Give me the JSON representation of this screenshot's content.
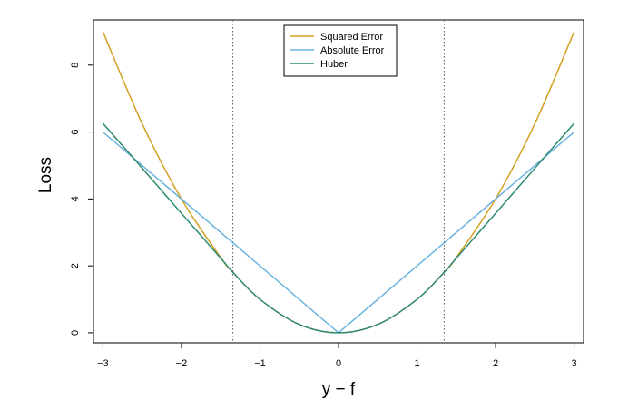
{
  "chart_data": {
    "type": "line",
    "title": "",
    "xlabel": "y − f",
    "ylabel": "Loss",
    "xlim": [
      -3.12,
      3.12
    ],
    "ylim": [
      -0.3,
      9.35
    ],
    "x_ticks": [
      -3,
      -2,
      -1,
      0,
      1,
      2,
      3
    ],
    "x_tick_labels": [
      "−3",
      "−2",
      "−1",
      "0",
      "1",
      "2",
      "3"
    ],
    "y_ticks": [
      0,
      2,
      4,
      6,
      8
    ],
    "y_tick_labels": [
      "0",
      "2",
      "4",
      "6",
      "8"
    ],
    "x": [
      -3,
      -2.5,
      -2,
      -1.5,
      -1.345,
      -1,
      -0.5,
      0,
      0.5,
      1,
      1.345,
      1.5,
      2,
      2.5,
      3
    ],
    "series": [
      {
        "name": "Squared Error",
        "color": "#D4A020",
        "values": [
          9,
          6.25,
          4,
          2.25,
          1.809,
          1,
          0.25,
          0,
          0.25,
          1,
          1.809,
          2.25,
          4,
          6.25,
          9
        ]
      },
      {
        "name": "Absolute Error",
        "color": "#6BB3E0",
        "values": [
          6,
          5,
          4,
          3,
          2.69,
          2,
          1,
          0,
          1,
          2,
          2.69,
          3,
          4,
          5,
          6
        ]
      },
      {
        "name": "Huber",
        "color": "#2E8B72",
        "values": [
          6.26,
          4.92,
          3.57,
          2.23,
          1.809,
          1,
          0.25,
          0,
          0.25,
          1,
          1.809,
          2.23,
          3.57,
          4.92,
          6.26
        ]
      }
    ],
    "vlines": [
      -1.345,
      1.345
    ],
    "grid": false,
    "legend": "top-center"
  }
}
